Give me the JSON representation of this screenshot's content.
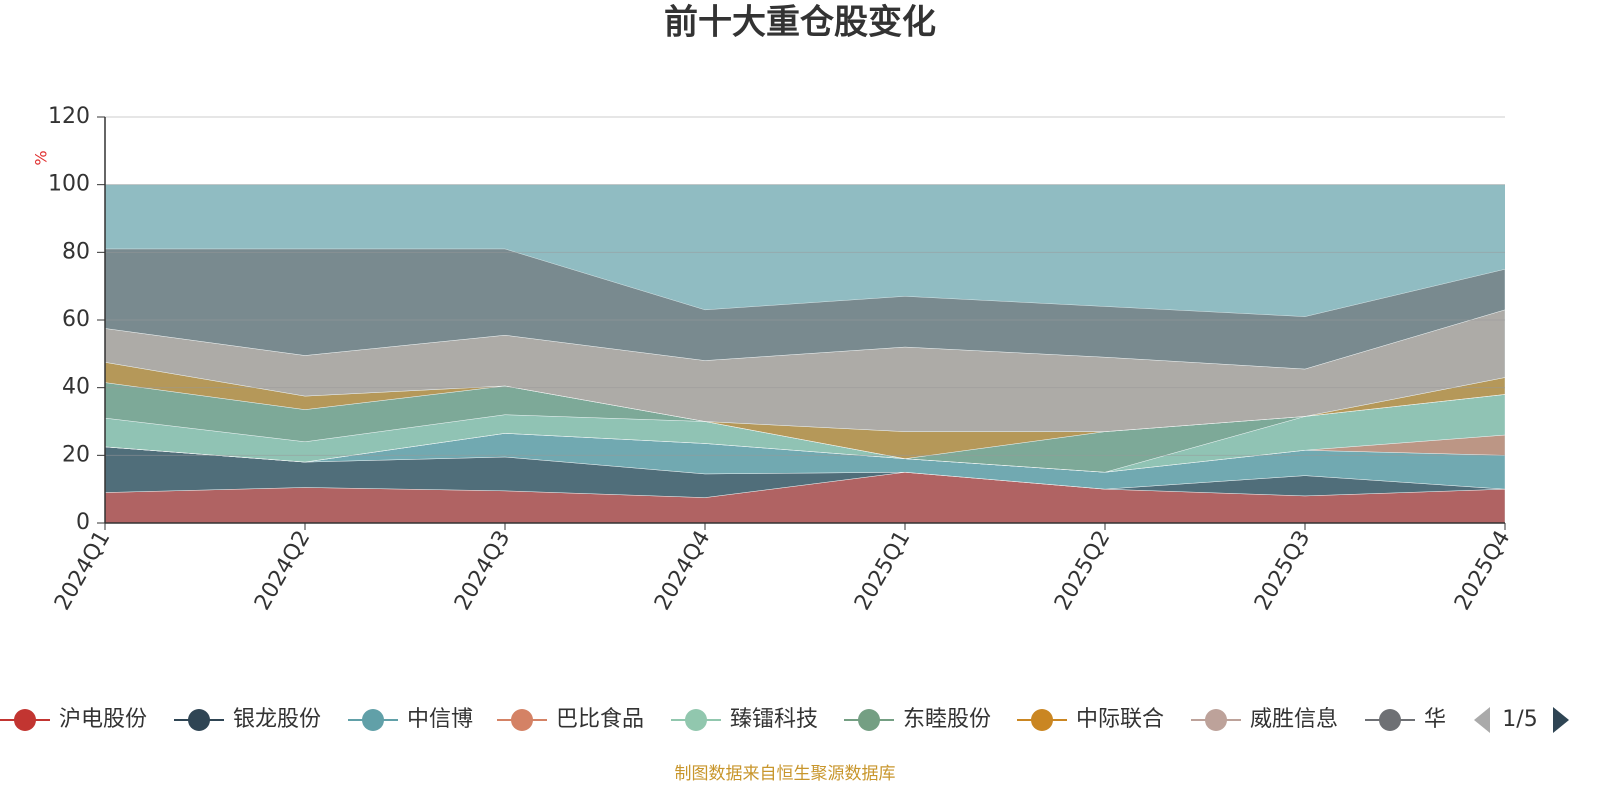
{
  "chart_data": {
    "type": "stacked_area",
    "title": "前十大重仓股变化",
    "y_label": "%",
    "categories": [
      "2024Q1",
      "2024Q2",
      "2024Q3",
      "2024Q4",
      "2025Q1",
      "2025Q2",
      "2025Q3",
      "2025Q4"
    ],
    "series": [
      {
        "name": "沪电股份",
        "color": "#c23531",
        "values": [
          9,
          10.5,
          9.5,
          7.5,
          15,
          10,
          8,
          10
        ]
      },
      {
        "name": "银龙股份",
        "color": "#2f4554",
        "values": [
          13.5,
          7.5,
          10,
          7,
          0,
          0,
          6,
          0
        ]
      },
      {
        "name": "中信博",
        "color": "#61a0a8",
        "values": [
          0,
          0,
          7,
          9,
          4,
          5,
          7.5,
          10
        ]
      },
      {
        "name": "巴比食品",
        "color": "#d48265",
        "values": [
          0,
          0,
          0,
          0,
          0,
          0,
          0,
          6
        ]
      },
      {
        "name": "臻镭科技",
        "color": "#91c7ae",
        "values": [
          8.5,
          6,
          5.5,
          6.5,
          0,
          0,
          10,
          12
        ]
      },
      {
        "name": "东睦股份",
        "color": "#749f83",
        "values": [
          10.5,
          9.5,
          8.5,
          0,
          0,
          12,
          0,
          0
        ]
      },
      {
        "name": "中际联合",
        "color": "#ca8622",
        "values": [
          6,
          4,
          0,
          0,
          8,
          0,
          0,
          5
        ]
      },
      {
        "name": "威胜信息",
        "color": "#bda29a",
        "values": [
          10,
          12,
          15,
          18,
          25,
          22,
          14,
          20
        ]
      },
      {
        "name": "华",
        "color": "#6e7074",
        "values": [
          23.5,
          31.5,
          25.5,
          15,
          15,
          15,
          15.5,
          12
        ]
      }
    ],
    "ylim": [
      0,
      120
    ],
    "yticks": [
      0,
      20,
      40,
      60,
      80,
      100,
      120
    ],
    "grid": true,
    "background_color": "#61a0a8",
    "legend_page": "1/5",
    "footer": "制图数据来自恒生聚源数据库"
  }
}
